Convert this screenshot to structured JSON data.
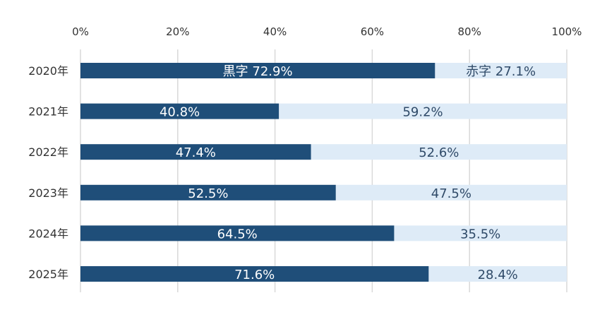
{
  "chart_data": {
    "type": "bar",
    "orientation": "horizontal",
    "stacked": "percent",
    "categories": [
      "2020年",
      "2021年",
      "2022年",
      "2023年",
      "2024年",
      "2025年"
    ],
    "series": [
      {
        "name": "黒字",
        "values": [
          72.9,
          40.8,
          47.4,
          52.5,
          64.5,
          71.6
        ],
        "color": "#1f4e79"
      },
      {
        "name": "赤字",
        "values": [
          27.1,
          59.2,
          52.6,
          47.5,
          35.5,
          28.4
        ],
        "color": "#deebf7"
      }
    ],
    "data_labels": {
      "dark": [
        "黒字  72.9%",
        "40.8%",
        "47.4%",
        "52.5%",
        "64.5%",
        "71.6%"
      ],
      "light": [
        "赤字  27.1%",
        "59.2%",
        "52.6%",
        "47.5%",
        "35.5%",
        "28.4%"
      ]
    },
    "x_ticks": [
      "0%",
      "20%",
      "40%",
      "60%",
      "80%",
      "100%"
    ],
    "xlim": [
      0,
      100
    ],
    "x_axis_position": "top",
    "grid": true,
    "legend": "none"
  }
}
